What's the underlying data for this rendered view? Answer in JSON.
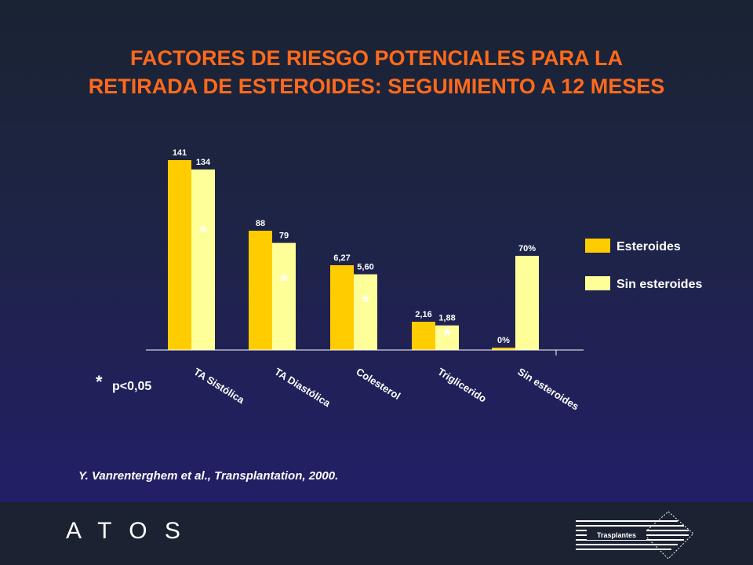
{
  "slide": {
    "title_line1": "FACTORES DE RIESGO POTENCIALES PARA LA",
    "title_line2": "RETIRADA DE ESTEROIDES: SEGUIMIENTO A 12 MESES",
    "citation": "Y. Vanrenterghem et al., Transplantation, 2000.",
    "footer_brand": "A T O S",
    "logo_text": "Trasplantes"
  },
  "colors": {
    "title": "#ff6a1a",
    "series_1": "#ffcc00",
    "series_2": "#ffff99",
    "text": "#ffffff"
  },
  "chart_data": {
    "type": "bar",
    "categories": [
      "TA Sistólica",
      "TA Diastólica",
      "Colesterol",
      "Triglicerido",
      "Sin esteroides"
    ],
    "series": [
      {
        "name": "Esteroides",
        "values": [
          141,
          88,
          6.27,
          2.16,
          0
        ],
        "labels": [
          "141",
          "88",
          "6,27",
          "2,16",
          "0%"
        ]
      },
      {
        "name": "Sin esteroides",
        "values": [
          134,
          79,
          5.6,
          1.88,
          70
        ],
        "labels": [
          "134",
          "79",
          "5,60",
          "1,88",
          "70%"
        ]
      }
    ],
    "significance_marker": "*",
    "significant": [
      true,
      true,
      true,
      true,
      false
    ],
    "footnote": {
      "symbol": "*",
      "text": "p<0,05"
    },
    "legend_position": "right",
    "grid": false
  }
}
